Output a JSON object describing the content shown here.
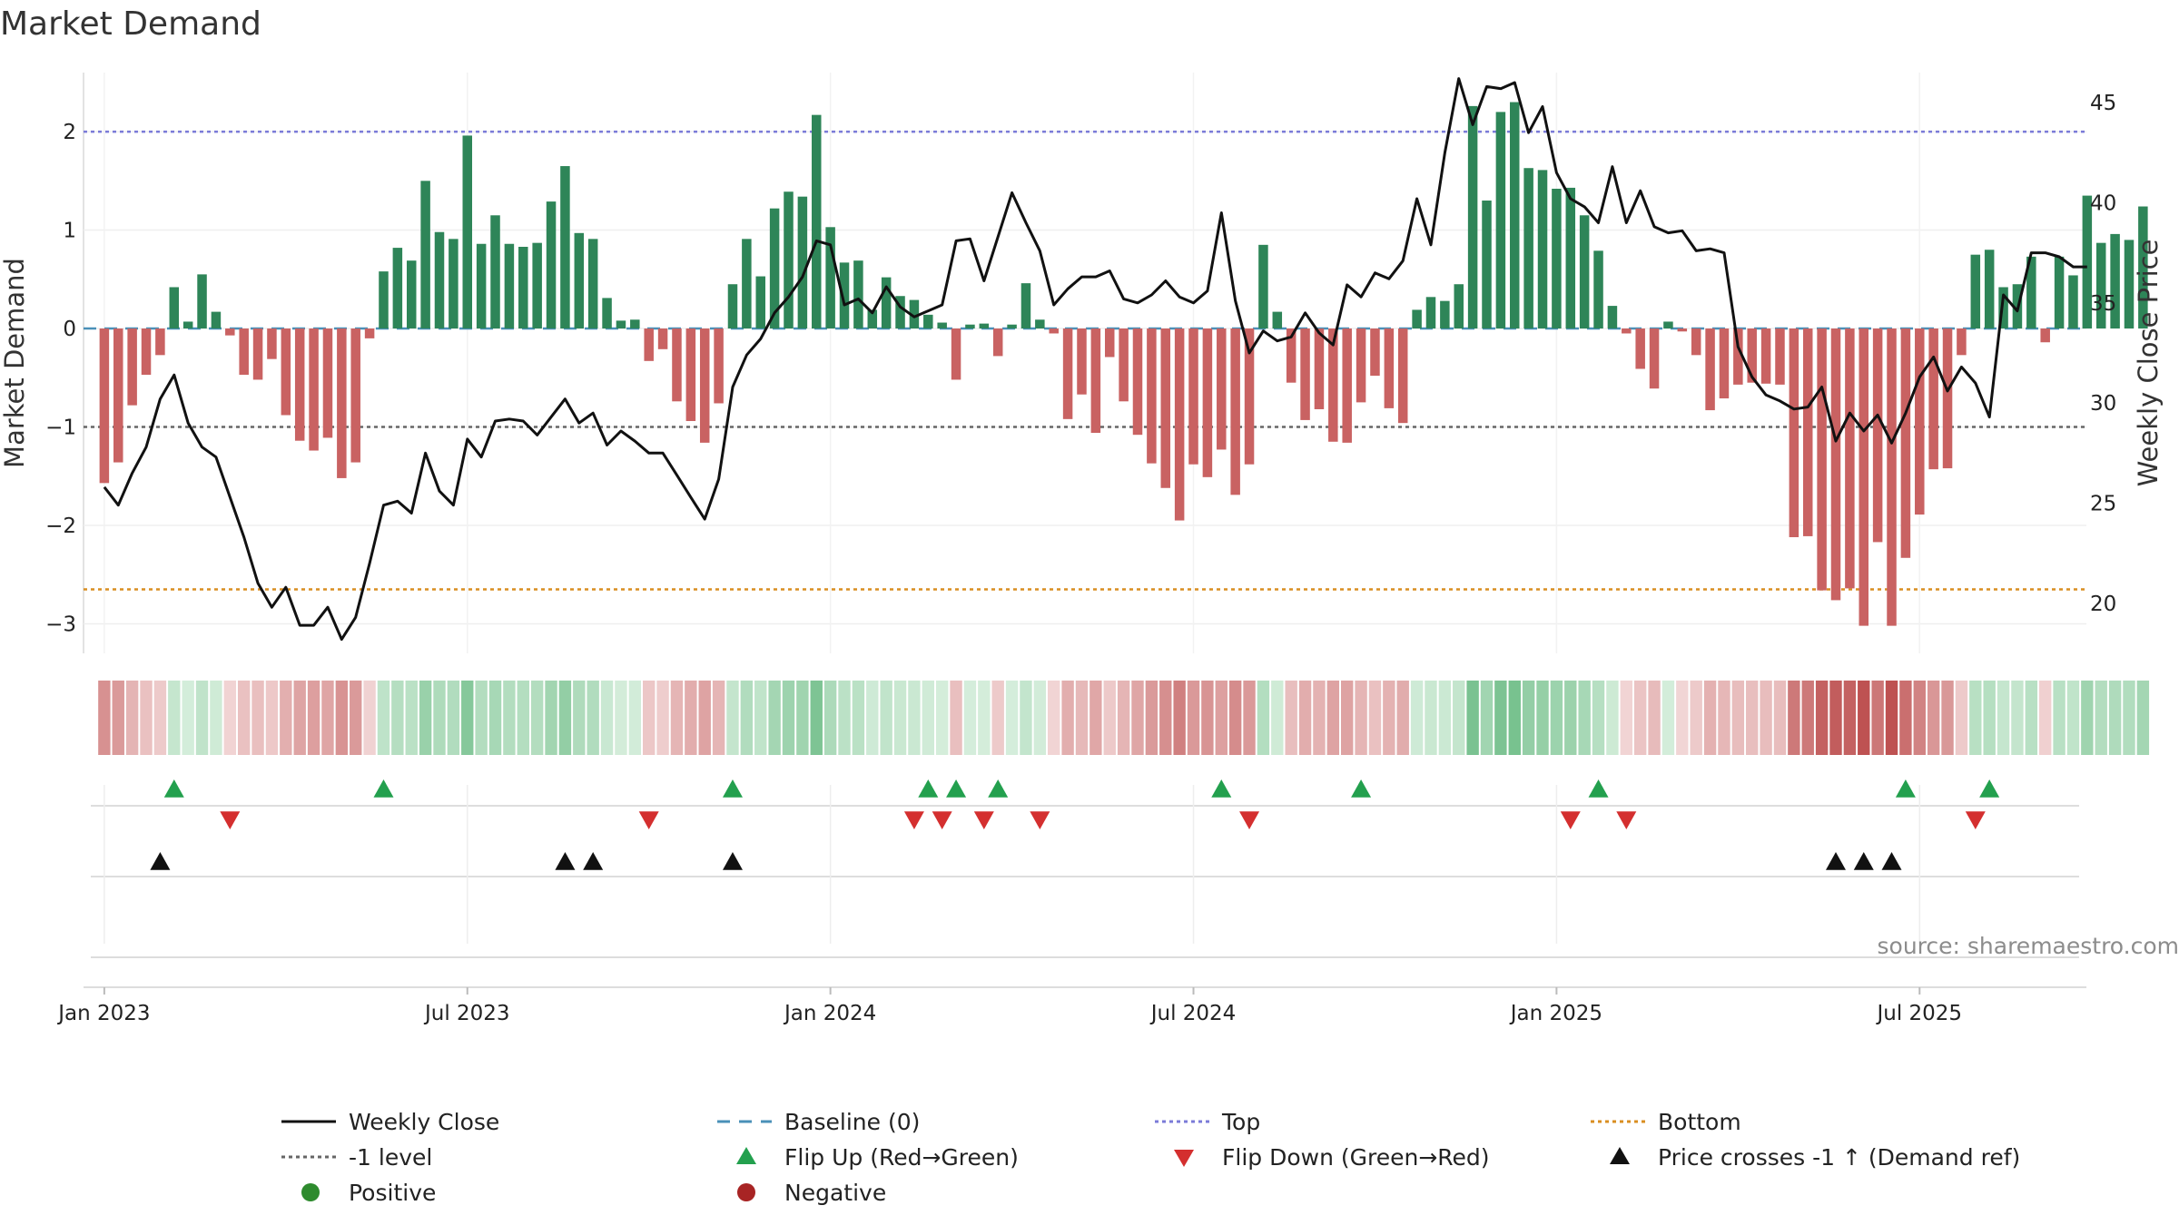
{
  "chart_data": {
    "type": "bar+line",
    "title": "Market Demand",
    "ylabel_left": "Market Demand",
    "ylabel_right": "Weekly Close Price",
    "ylim_left": [
      -3.3,
      2.6
    ],
    "yticks_left": [
      -3,
      -2,
      -1,
      0,
      1,
      2
    ],
    "ylim_right": [
      17.5,
      46.5
    ],
    "yticks_right": [
      20,
      25,
      30,
      35,
      40,
      45
    ],
    "x_ticks": [
      {
        "week": 1,
        "label": "Jan 2023"
      },
      {
        "week": 27,
        "label": "Jul 2023"
      },
      {
        "week": 53,
        "label": "Jan 2024"
      },
      {
        "week": 79,
        "label": "Jul 2024"
      },
      {
        "week": 105,
        "label": "Jan 2025"
      },
      {
        "week": 131,
        "label": "Jul 2025"
      }
    ],
    "reference_lines": {
      "top": 2.0,
      "bottom": -2.65,
      "minus_one": -1.0,
      "baseline": 0
    },
    "demand": [
      -1.57,
      -1.36,
      -0.78,
      -0.47,
      -0.27,
      0.42,
      0.07,
      0.55,
      0.17,
      -0.07,
      -0.47,
      -0.52,
      -0.31,
      -0.88,
      -1.14,
      -1.24,
      -1.11,
      -1.52,
      -1.36,
      -0.1,
      0.58,
      0.82,
      0.69,
      1.5,
      0.98,
      0.91,
      1.96,
      0.86,
      1.15,
      0.86,
      0.83,
      0.87,
      1.29,
      1.65,
      0.97,
      0.91,
      0.31,
      0.08,
      0.09,
      -0.33,
      -0.21,
      -0.74,
      -0.94,
      -1.16,
      -0.76,
      0.45,
      0.91,
      0.53,
      1.22,
      1.39,
      1.34,
      2.17,
      1.03,
      0.67,
      0.69,
      0.19,
      0.52,
      0.33,
      0.29,
      0.14,
      0.06,
      -0.52,
      0.04,
      0.05,
      -0.28,
      0.04,
      0.46,
      0.09,
      -0.05,
      -0.92,
      -0.67,
      -1.06,
      -0.29,
      -0.74,
      -1.08,
      -1.37,
      -1.62,
      -1.95,
      -1.38,
      -1.51,
      -1.23,
      -1.69,
      -1.38,
      0.85,
      0.17,
      -0.55,
      -0.93,
      -0.82,
      -1.15,
      -1.16,
      -0.75,
      -0.48,
      -0.81,
      -0.96,
      0.19,
      0.32,
      0.28,
      0.45,
      2.26,
      1.3,
      2.2,
      2.3,
      1.63,
      1.61,
      1.42,
      1.43,
      1.15,
      0.79,
      0.23,
      -0.05,
      -0.41,
      -0.61,
      0.07,
      -0.03,
      -0.27,
      -0.83,
      -0.71,
      -0.57,
      -0.55,
      -0.56,
      -0.57,
      -2.12,
      -2.11,
      -2.66,
      -2.76,
      -2.64,
      -3.02,
      -2.17,
      -3.02,
      -2.33,
      -1.89,
      -1.43,
      -1.42,
      -0.27,
      0.75,
      0.8,
      0.42,
      0.45,
      0.73,
      -0.14,
      0.73,
      0.54,
      1.35,
      0.87,
      0.96,
      0.9,
      1.24
    ],
    "weekly_close": [
      25.8,
      24.9,
      26.5,
      27.8,
      30.2,
      31.4,
      29,
      27.8,
      27.3,
      25.3,
      23.3,
      21,
      19.8,
      20.8,
      18.9,
      18.9,
      19.8,
      18.2,
      19.3,
      22,
      24.9,
      25.1,
      24.5,
      27.5,
      25.6,
      24.9,
      28.2,
      27.3,
      29.1,
      29.2,
      29.1,
      28.4,
      29.3,
      30.2,
      29,
      29.5,
      27.9,
      28.6,
      28.1,
      27.5,
      27.5,
      26.4,
      25.3,
      24.2,
      26.2,
      30.8,
      32.4,
      33.2,
      34.5,
      35.3,
      36.3,
      38.1,
      37.9,
      34.9,
      35.2,
      34.5,
      35.8,
      34.8,
      34.3,
      34.6,
      34.9,
      38.1,
      38.2,
      36.1,
      38.3,
      40.5,
      39,
      37.6,
      34.9,
      35.7,
      36.3,
      36.3,
      36.6,
      35.2,
      35,
      35.4,
      36.1,
      35.3,
      35,
      35.6,
      39.5,
      35.1,
      32.5,
      33.6,
      33.1,
      33.3,
      34.5,
      33.5,
      32.9,
      35.9,
      35.3,
      36.5,
      36.2,
      37.1,
      40.2,
      37.9,
      42.5,
      46.2,
      43.9,
      45.8,
      45.7,
      46,
      43.5,
      44.8,
      41.5,
      40.2,
      39.8,
      39,
      41.8,
      39,
      40.6,
      38.8,
      38.5,
      38.6,
      37.6,
      37.7,
      37.5,
      32.8,
      31.3,
      30.4,
      30.1,
      29.7,
      29.8,
      30.8,
      28.1,
      29.5,
      28.6,
      29.4,
      28,
      29.5,
      31.3,
      32.3,
      30.6,
      31.8,
      31,
      29.3,
      35.4,
      34.6,
      37.5,
      37.5,
      37.3,
      36.8,
      36.8
    ],
    "flip_up_weeks": [
      6,
      21,
      46,
      60,
      62,
      65,
      81,
      91,
      108,
      130,
      136
    ],
    "flip_down_weeks": [
      10,
      40,
      59,
      61,
      64,
      68,
      83,
      106,
      110,
      135
    ],
    "price_cross_weeks": [
      5,
      34,
      36,
      46,
      125,
      127,
      129
    ],
    "legend": [
      {
        "label": "Weekly Close",
        "kind": "line-solid"
      },
      {
        "label": "Baseline (0)",
        "kind": "line-dashed"
      },
      {
        "label": "Top",
        "kind": "line-dotted-blue"
      },
      {
        "label": "Bottom",
        "kind": "line-dotted-orange"
      },
      {
        "label": "-1 level",
        "kind": "line-dotted-gray"
      },
      {
        "label": "Flip Up (Red→Green)",
        "kind": "marker-up-green"
      },
      {
        "label": "Flip Down (Green→Red)",
        "kind": "marker-down-red"
      },
      {
        "label": "Price crosses -1 ↑ (Demand ref)",
        "kind": "marker-up-black"
      },
      {
        "label": "Positive",
        "kind": "dot-green"
      },
      {
        "label": "Negative",
        "kind": "dot-red"
      }
    ],
    "source": "source: sharemaestro.com"
  },
  "colors": {
    "positive": "#2e8558",
    "negative": "#c96262",
    "close_line": "#111111",
    "baseline": "#4a90b8",
    "top": "#7b7bd8",
    "bottom": "#d98e21",
    "minus_one": "#666666",
    "flip_up": "#23a04e",
    "flip_down": "#d42f2f",
    "cross": "#111111",
    "legend_positive": "#2e8b2e",
    "legend_negative": "#a82424"
  }
}
